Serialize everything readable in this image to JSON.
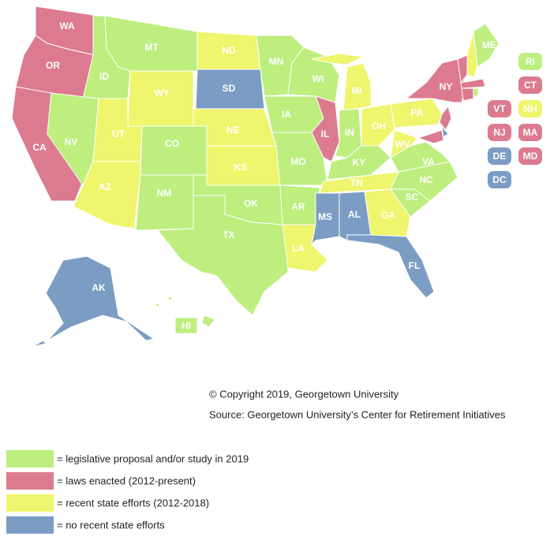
{
  "legend": [
    {
      "color": "#bdee7e",
      "label": "= legislative proposal and/or study in 2019"
    },
    {
      "color": "#dc7b8f",
      "label": "= laws enacted (2012-present)"
    },
    {
      "color": "#eff56c",
      "label": "= recent state efforts (2012-2018)"
    },
    {
      "color": "#7b9dc4",
      "label": "= no recent state efforts"
    }
  ],
  "states": [
    {
      "label": "WA",
      "status": 1
    },
    {
      "label": "OR",
      "status": 1
    },
    {
      "label": "CA",
      "status": 1
    },
    {
      "label": "ID",
      "status": 0
    },
    {
      "label": "NV",
      "status": 0
    },
    {
      "label": "MT",
      "status": 0
    },
    {
      "label": "WY",
      "status": 2
    },
    {
      "label": "UT",
      "status": 2
    },
    {
      "label": "AZ",
      "status": 2
    },
    {
      "label": "CO",
      "status": 0
    },
    {
      "label": "NM",
      "status": 0
    },
    {
      "label": "ND",
      "status": 2
    },
    {
      "label": "SD",
      "status": 3
    },
    {
      "label": "NE",
      "status": 2
    },
    {
      "label": "KS",
      "status": 2
    },
    {
      "label": "OK",
      "status": 0
    },
    {
      "label": "TX",
      "status": 0
    },
    {
      "label": "MN",
      "status": 0
    },
    {
      "label": "IA",
      "status": 0
    },
    {
      "label": "MO",
      "status": 0
    },
    {
      "label": "AR",
      "status": 0
    },
    {
      "label": "LA",
      "status": 2
    },
    {
      "label": "WI",
      "status": 0
    },
    {
      "label": "IL",
      "status": 1
    },
    {
      "label": "MI",
      "status": 2
    },
    {
      "label": "IN",
      "status": 0
    },
    {
      "label": "OH",
      "status": 2
    },
    {
      "label": "KY",
      "status": 0
    },
    {
      "label": "TN",
      "status": 2
    },
    {
      "label": "MS",
      "status": 3
    },
    {
      "label": "AL",
      "status": 3
    },
    {
      "label": "GA",
      "status": 2
    },
    {
      "label": "FL",
      "status": 3
    },
    {
      "label": "SC",
      "status": 0
    },
    {
      "label": "NC",
      "status": 0
    },
    {
      "label": "VA",
      "status": 0
    },
    {
      "label": "WV",
      "status": 2
    },
    {
      "label": "PA",
      "status": 2
    },
    {
      "label": "NY",
      "status": 1
    },
    {
      "label": "ME",
      "status": 0
    },
    {
      "label": "RI",
      "status": 0
    },
    {
      "label": "CT",
      "status": 1
    },
    {
      "label": "VT",
      "status": 1
    },
    {
      "label": "NH",
      "status": 2
    },
    {
      "label": "NJ",
      "status": 1
    },
    {
      "label": "MA",
      "status": 1
    },
    {
      "label": "DE",
      "status": 3
    },
    {
      "label": "MD",
      "status": 1
    },
    {
      "label": "DC",
      "status": 3
    },
    {
      "label": "AK",
      "status": 3
    },
    {
      "label": "HI",
      "status": 0
    }
  ],
  "copyright": "© Copyright 2019, Georgetown University",
  "source": "Source: Georgetown University’s Center for Retirement Initiatives"
}
